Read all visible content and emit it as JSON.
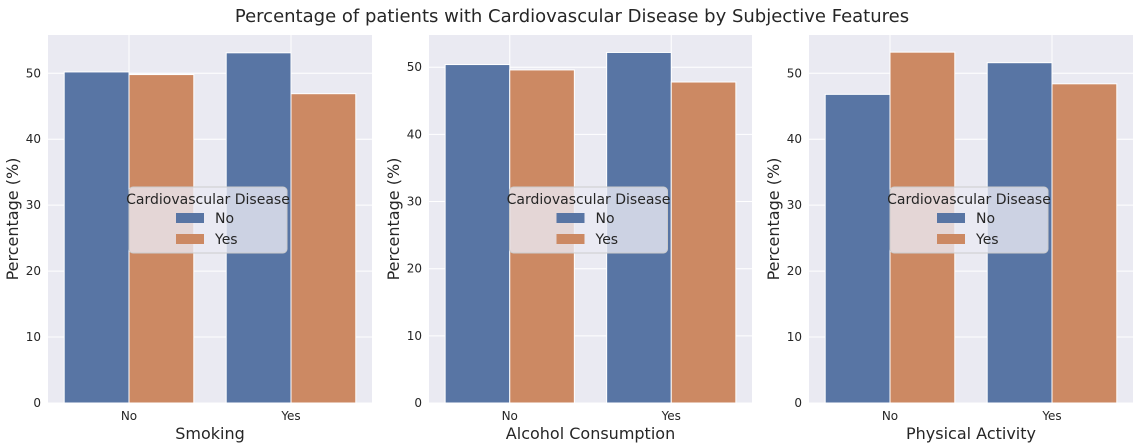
{
  "title": "Percentage of patients with Cardiovascular Disease by Subjective Features",
  "colors": {
    "No": "#5875a4",
    "Yes": "#cc8963",
    "plot_bg": "#eaeaf2",
    "grid": "#ffffff"
  },
  "legend": {
    "title": "Cardiovascular Disease",
    "entries": [
      "No",
      "Yes"
    ]
  },
  "chart_data": [
    {
      "type": "bar",
      "title": "",
      "xlabel": "Smoking",
      "ylabel": "Percentage (%)",
      "categories": [
        "No",
        "Yes"
      ],
      "series": [
        {
          "name": "No",
          "values": [
            50.2,
            53.1
          ]
        },
        {
          "name": "Yes",
          "values": [
            49.8,
            46.9
          ]
        }
      ],
      "ylim": [
        0,
        55.8
      ],
      "yticks": [
        0,
        10,
        20,
        30,
        40,
        50
      ],
      "grid": true,
      "legend_placement": "center"
    },
    {
      "type": "bar",
      "title": "",
      "xlabel": "Alcohol Consumption",
      "ylabel": "Percentage (%)",
      "categories": [
        "No",
        "Yes"
      ],
      "series": [
        {
          "name": "No",
          "values": [
            50.4,
            52.2
          ]
        },
        {
          "name": "Yes",
          "values": [
            49.6,
            47.8
          ]
        }
      ],
      "ylim": [
        0,
        54.8
      ],
      "yticks": [
        0,
        10,
        20,
        30,
        40,
        50
      ],
      "grid": true,
      "legend_placement": "center"
    },
    {
      "type": "bar",
      "title": "",
      "xlabel": "Physical Activity",
      "ylabel": "Percentage (%)",
      "categories": [
        "No",
        "Yes"
      ],
      "series": [
        {
          "name": "No",
          "values": [
            46.8,
            51.6
          ]
        },
        {
          "name": "Yes",
          "values": [
            53.2,
            48.4
          ]
        }
      ],
      "ylim": [
        0,
        55.8
      ],
      "yticks": [
        0,
        10,
        20,
        30,
        40,
        50
      ],
      "grid": true,
      "legend_placement": "center"
    }
  ]
}
